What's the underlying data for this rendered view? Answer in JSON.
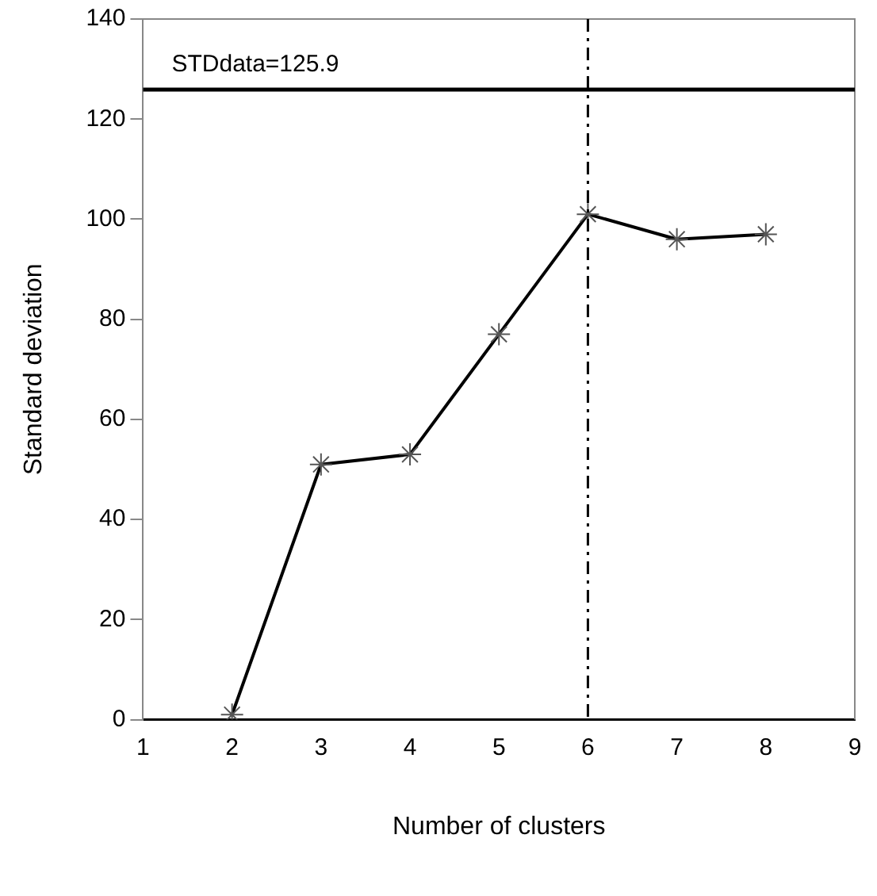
{
  "chart_data": {
    "type": "line",
    "xlabel": "Number of clusters",
    "ylabel": "Standard deviation",
    "x": [
      2,
      3,
      4,
      5,
      6,
      7,
      8
    ],
    "series": [
      {
        "color": "#000000",
        "values": [
          1,
          51,
          53,
          77,
          101,
          96,
          97
        ]
      }
    ],
    "xlim": [
      1,
      9
    ],
    "xticks": [
      1,
      2,
      3,
      4,
      5,
      6,
      7,
      8,
      9
    ],
    "ylim": [
      0,
      140
    ],
    "yticks": [
      0,
      20,
      40,
      60,
      80,
      100,
      120,
      140
    ],
    "ref_lines": [
      {
        "axis": "y",
        "value": 125.9,
        "label": "STDdata=125.9",
        "color": "#000000",
        "line_style": "solid"
      },
      {
        "axis": "x",
        "value": 6,
        "color": "#000000",
        "line_style": "dashed"
      }
    ],
    "grid": false,
    "legend": false,
    "marker": "cross",
    "line_style": "solid"
  }
}
